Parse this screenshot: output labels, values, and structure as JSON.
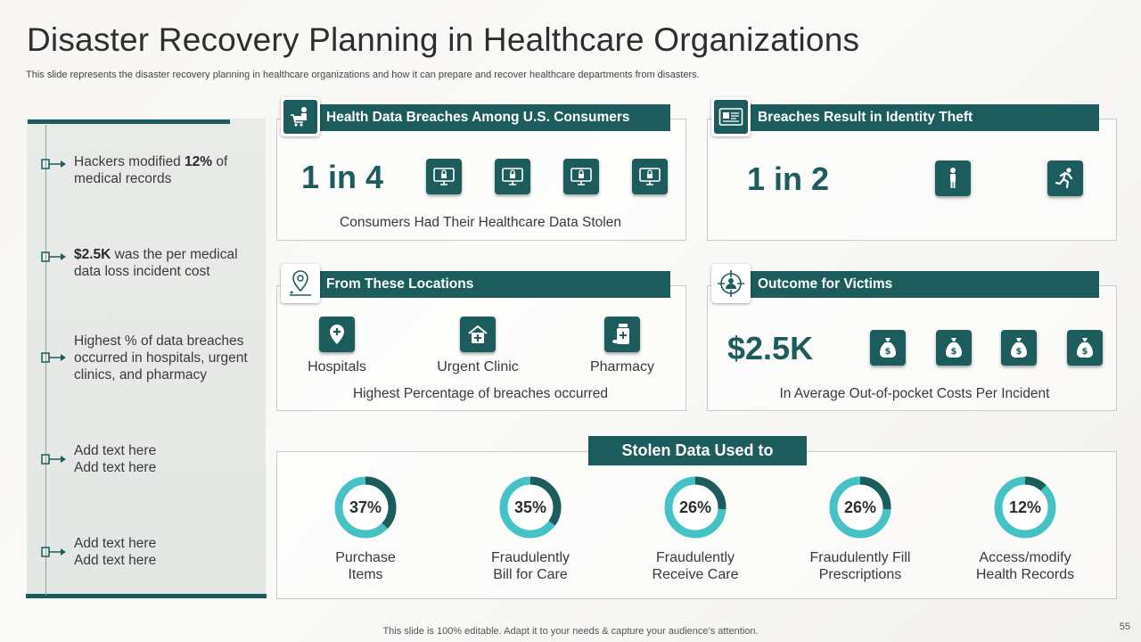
{
  "title": "Disaster Recovery Planning in Healthcare Organizations",
  "subtitle": "This slide represents the disaster recovery planning in healthcare organizations and how it can prepare and recover healthcare departments from disasters.",
  "timeline": [
    {
      "pre": "Hackers modified ",
      "bold": "12%",
      "post": " of\nmedical records"
    },
    {
      "pre": "",
      "bold": "$2.5K",
      "post": " was the per medical\ndata loss incident cost"
    },
    {
      "pre": "Highest % of data breaches\noccurred in hospitals, urgent\nclinics, and pharmacy",
      "bold": "",
      "post": ""
    },
    {
      "pre": "Add text here\nAdd text here",
      "bold": "",
      "post": ""
    },
    {
      "pre": "Add text here\nAdd text here",
      "bold": "",
      "post": ""
    }
  ],
  "breaches": {
    "header": "Health Data Breaches Among U.S. Consumers",
    "stat": "1 in 4",
    "caption": "Consumers Had Their Healthcare  Data Stolen",
    "header_icon": "shopping-cart-person-icon",
    "tile_icon": "monitor-lock-icon"
  },
  "identity": {
    "header": "Breaches Result in Identity Theft",
    "stat": "1 in 2",
    "header_icon": "id-card-icon",
    "tile_icons": [
      "person-standing-icon",
      "running-person-icon"
    ]
  },
  "locations": {
    "header": "From These Locations",
    "header_icon": "map-pin-icon",
    "items": [
      {
        "label": "Hospitals",
        "icon": "hospital-pin-icon"
      },
      {
        "label": "Urgent Clinic",
        "icon": "clinic-house-icon"
      },
      {
        "label": "Pharmacy",
        "icon": "pharmacy-bottle-icon"
      }
    ],
    "caption": "Highest Percentage of breaches occurred"
  },
  "outcome": {
    "header": "Outcome for Victims",
    "header_icon": "target-person-icon",
    "stat": "$2.5K",
    "caption": "In  Average  Out-of-pocket  Costs Per Incident",
    "tile_icon": "money-bag-icon"
  },
  "stolen": {
    "header": "Stolen Data Used to",
    "items": [
      {
        "value": 37,
        "label_pct": "37%",
        "label": "Purchase\nItems"
      },
      {
        "value": 35,
        "label_pct": "35%",
        "label": "Fraudulently\nBill for Care"
      },
      {
        "value": 26,
        "label_pct": "26%",
        "label": "Fraudulently\nReceive Care"
      },
      {
        "value": 26,
        "label_pct": "26%",
        "label": "Fraudulently  Fill\nPrescriptions"
      },
      {
        "value": 12,
        "label_pct": "12%",
        "label": "Access/modify\nHealth Records"
      }
    ]
  },
  "colors": {
    "primary": "#1c5c5c",
    "ring": "#44c2c6"
  },
  "footer": "This slide is 100% editable. Adapt it to your needs & capture your audience’s attention.",
  "page_number": "55"
}
